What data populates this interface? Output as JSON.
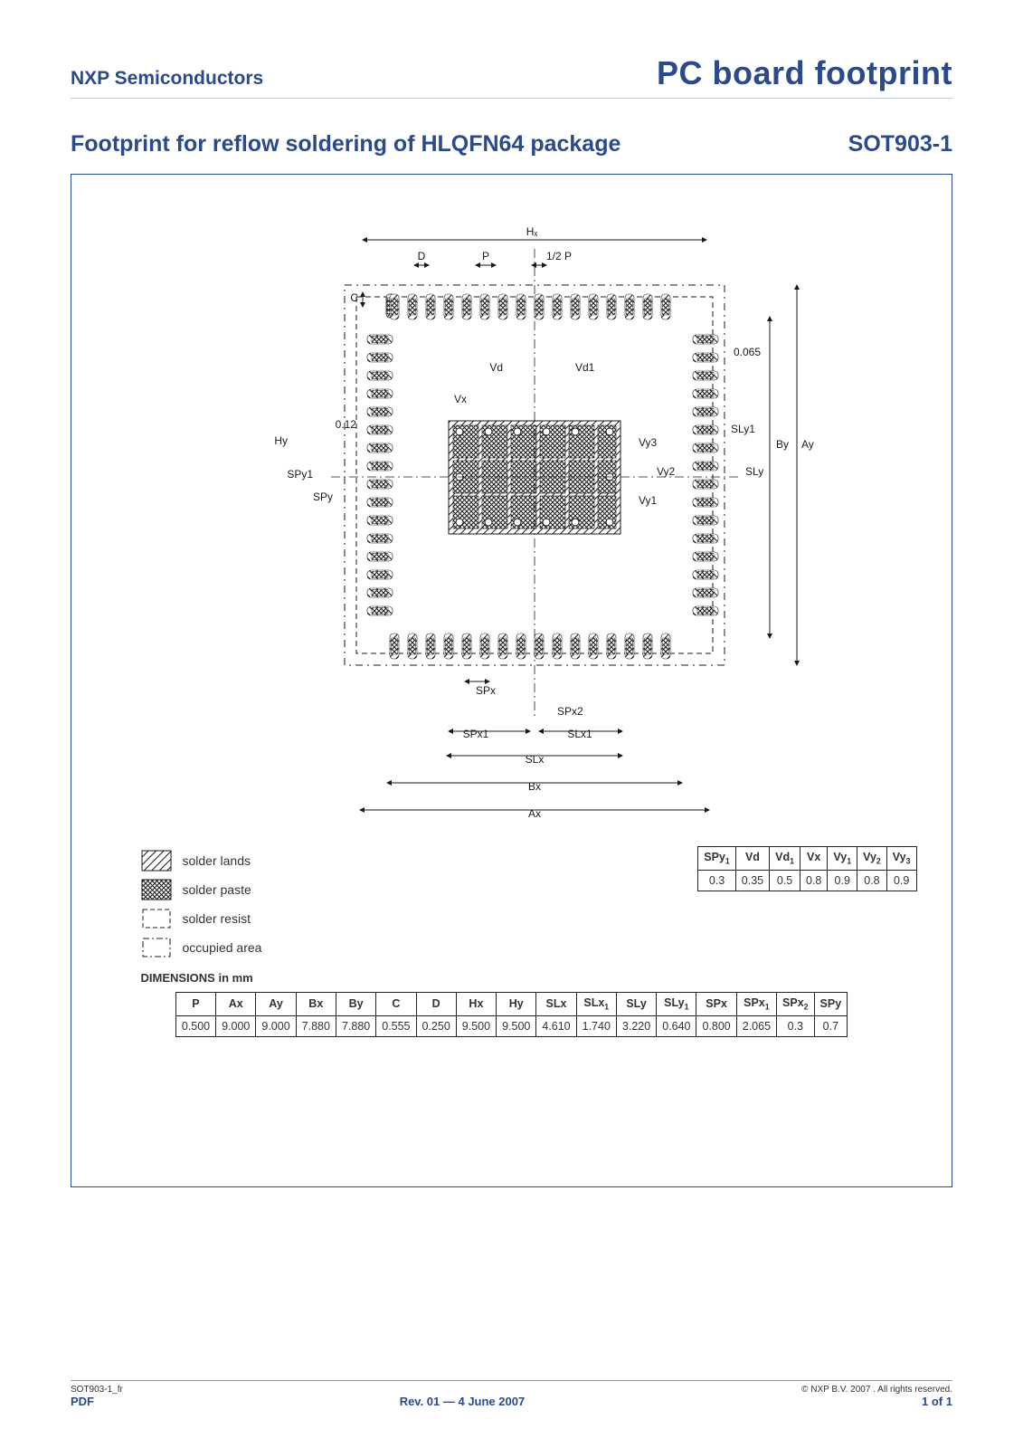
{
  "header": {
    "brand": "NXP Semiconductors",
    "page_title": "PC board footprint"
  },
  "subheader": {
    "subtitle": "Footprint for reflow soldering of HLQFN64 package",
    "pkg_code": "SOT903-1"
  },
  "colors": {
    "brand_blue": "#2b4a8b",
    "rule_gray": "#bfc6d1",
    "page_bg": "#ffffff",
    "stroke": "#1a1a1a"
  },
  "diagram": {
    "callouts": {
      "Hx": "Hₓ",
      "D": "D",
      "P": "P",
      "halfP": "1/2 P",
      "C": "C",
      "012": "0.12",
      "Hy": "Hy",
      "SPy1": "SPy1",
      "SPy": "SPy",
      "Vd": "Vd",
      "Vd1": "Vd1",
      "Vx": "Vx",
      "0065": "0.065",
      "Vy3": "Vy3",
      "Vy2": "Vy2",
      "Vy1": "Vy1",
      "SLy1": "SLy1",
      "SLy": "SLy",
      "By": "By",
      "Ay": "Ay",
      "SPx": "SPx",
      "SPx2": "SPx2",
      "SPx1": "SPx1",
      "SLx1": "SLx1",
      "SLx": "SLx",
      "Bx": "Bx",
      "Ax": "Ax"
    },
    "legend": {
      "solder_lands": "solder lands",
      "solder_paste": "solder paste",
      "solder_resist": "solder resist",
      "occupied_area": "occupied area"
    }
  },
  "dimensions_label": "DIMENSIONS in mm",
  "table_small": {
    "headers": [
      "SPy1",
      "Vd",
      "Vd1",
      "Vx",
      "Vy1",
      "Vy2",
      "Vy3"
    ],
    "values": [
      "0.3",
      "0.35",
      "0.5",
      "0.8",
      "0.9",
      "0.8",
      "0.9"
    ]
  },
  "table_big": {
    "headers": [
      "P",
      "Ax",
      "Ay",
      "Bx",
      "By",
      "C",
      "D",
      "Hx",
      "Hy",
      "SLx",
      "SLx1",
      "SLy",
      "SLy1",
      "SPx",
      "SPx1",
      "SPx2",
      "SPy"
    ],
    "values": [
      "0.500",
      "9.000",
      "9.000",
      "7.880",
      "7.880",
      "0.555",
      "0.250",
      "9.500",
      "9.500",
      "4.610",
      "1.740",
      "3.220",
      "0.640",
      "0.800",
      "2.065",
      "0.3",
      "0.7"
    ]
  },
  "footer": {
    "left": "SOT903-1_fr",
    "mid": "Rev. 01 — 4 June 2007",
    "copyright": "© NXP B.V. 2007 . All rights reserved.",
    "pdf": "PDF",
    "page": "1 of 1"
  }
}
